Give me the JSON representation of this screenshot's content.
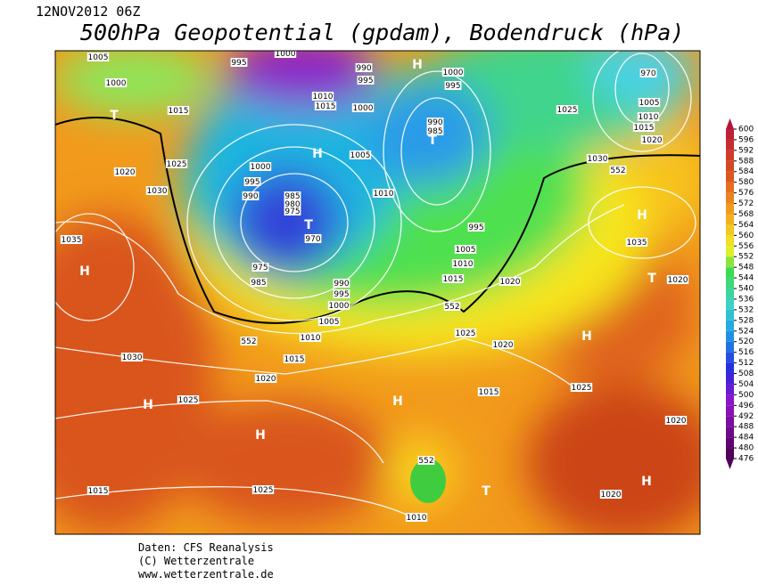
{
  "header": {
    "date": "12NOV2012 06Z",
    "title": "500hPa Geopotential (gpdam), Bodendruck (hPa)"
  },
  "footer": {
    "line1": "Daten: CFS Reanalysis",
    "line2": "(C) Wetterzentrale",
    "line3": "www.wetterzentrale.de"
  },
  "colorbar": {
    "ticks": [
      476,
      480,
      484,
      488,
      492,
      496,
      500,
      504,
      508,
      512,
      516,
      520,
      524,
      528,
      532,
      536,
      540,
      544,
      548,
      552,
      556,
      560,
      564,
      568,
      572,
      576,
      580,
      584,
      588,
      592,
      596,
      600
    ]
  },
  "map": {
    "labels": [
      "1005",
      "995",
      "1000",
      "990",
      "995",
      "H",
      "1000",
      "995",
      "970",
      "1000",
      "1015",
      "T",
      "1010",
      "1015",
      "1000",
      "990",
      "985",
      "T",
      "1025",
      "1005",
      "1010",
      "1015",
      "1020",
      "H",
      "1005",
      "1020",
      "1025",
      "1000",
      "995",
      "1030",
      "990",
      "985",
      "980",
      "975",
      "T",
      "1010",
      "1030",
      "552",
      "H",
      "970",
      "995",
      "1035",
      "1035",
      "1005",
      "1010",
      "H",
      "975",
      "1015",
      "1020",
      "T",
      "1020",
      "985",
      "990",
      "995",
      "1000",
      "552",
      "1005",
      "1025",
      "H",
      "552",
      "1010",
      "1020",
      "1015",
      "1030",
      "1025",
      "1020",
      "1015",
      "H",
      "H",
      "1025",
      "1020",
      "H",
      "552",
      "1015",
      "1025",
      "T",
      "H",
      "1020",
      "1010"
    ]
  }
}
